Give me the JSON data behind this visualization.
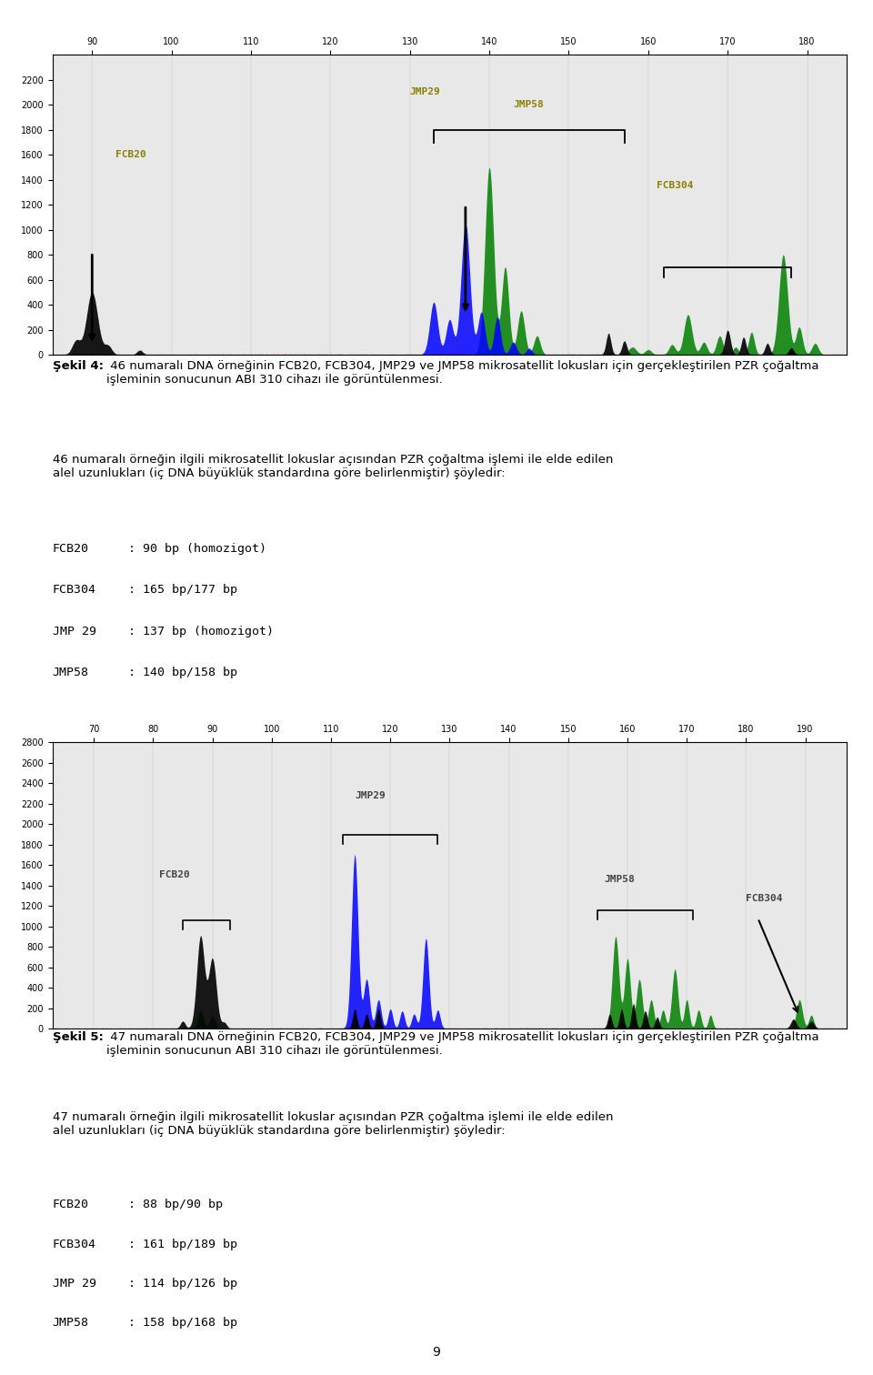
{
  "page_bg": "#ffffff",
  "fig_size": [
    9.6,
    15.12
  ],
  "dpi": 100,
  "chart1": {
    "x_ticks": [
      90,
      100,
      110,
      120,
      130,
      140,
      150,
      160,
      170,
      180
    ],
    "x_min": 85,
    "x_max": 185,
    "y_min": 0,
    "y_max": 2400,
    "y_ticks": [
      0,
      200,
      400,
      600,
      800,
      1000,
      1200,
      1400,
      1600,
      1800,
      2000,
      2200
    ]
  },
  "chart2": {
    "x_ticks": [
      70,
      80,
      90,
      100,
      110,
      120,
      130,
      140,
      150,
      160,
      170,
      180,
      190
    ],
    "x_min": 63,
    "x_max": 197,
    "y_min": 0,
    "y_max": 2800,
    "y_ticks": [
      0,
      200,
      400,
      600,
      800,
      1000,
      1200,
      1400,
      1600,
      1800,
      2000,
      2200,
      2400,
      2600,
      2800
    ]
  },
  "caption1_bold": "Şekil 4:",
  "caption1_rest": " 46 numaralı DNA örneğinin FCB20, FCB304, JMP29 ve JMP58 mikrosatellit lokusları için gerçekleştirilen PZR çoğaltma işleminin sonucunun ABI 310 cihazı ile görüntülenmesi.",
  "para1_line1": "46 numaralı örneğin ilgili mikrosatellit lokuslar açısından PZR çoğaltma işlemi ile elde edilen",
  "para1_line2": "alel uzunlukları (iç DNA büyüklük standardına göre belirlenmiştir) şöyledir:",
  "list1": [
    [
      "FCB20",
      ": 90 bp (homozigot)"
    ],
    [
      "FCB304",
      ": 165 bp/177 bp"
    ],
    [
      "JMP 29",
      ": 137 bp (homozigot)"
    ],
    [
      "JMP58",
      ": 140 bp/158 bp"
    ]
  ],
  "caption2_bold": "Şekil 5:",
  "caption2_rest": " 47 numaralı DNA örneğinin FCB20, FCB304, JMP29 ve JMP58 mikrosatellit lokusları için gerçekleştirilen PZR çoğaltma işleminin sonucunun ABI 310 cihazı ile görüntülenmesi.",
  "para2_line1": "47 numaralı örneğin ilgili mikrosatellit lokuslar açısından PZR çoğaltma işlemi ile elde edilen",
  "para2_line2": "alel uzunlukları (iç DNA büyüklük standardına göre belirlenmiştir) şöyledir:",
  "list2": [
    [
      "FCB20",
      ": 88 bp/90 bp"
    ],
    [
      "FCB304",
      ": 161 bp/189 bp"
    ],
    [
      "JMP 29",
      ": 114 bp/126 bp"
    ],
    [
      "JMP58",
      ": 158 bp/168 bp"
    ]
  ],
  "page_number": "9"
}
